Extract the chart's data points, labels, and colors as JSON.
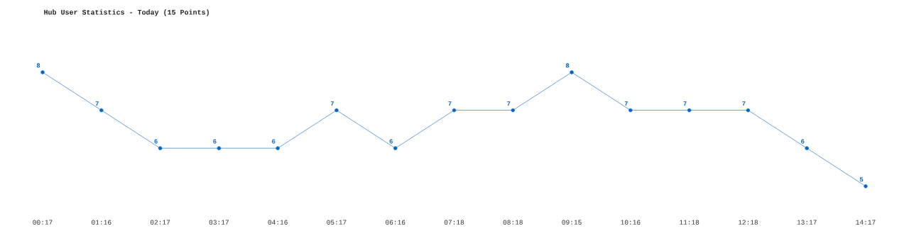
{
  "chart_data": {
    "type": "line",
    "title": "Hub User Statistics - Today (15 Points)",
    "categories": [
      "00:17",
      "01:16",
      "02:17",
      "03:17",
      "04:16",
      "05:17",
      "06:16",
      "07:18",
      "08:18",
      "09:15",
      "10:16",
      "11:18",
      "12:18",
      "13:17",
      "14:17"
    ],
    "values": [
      8,
      7,
      6,
      6,
      6,
      7,
      6,
      7,
      7,
      8,
      7,
      7,
      7,
      6,
      5
    ],
    "color": "#0066cc",
    "data_labels": true,
    "marker": "circle",
    "line_style": "solid",
    "grid": false
  }
}
